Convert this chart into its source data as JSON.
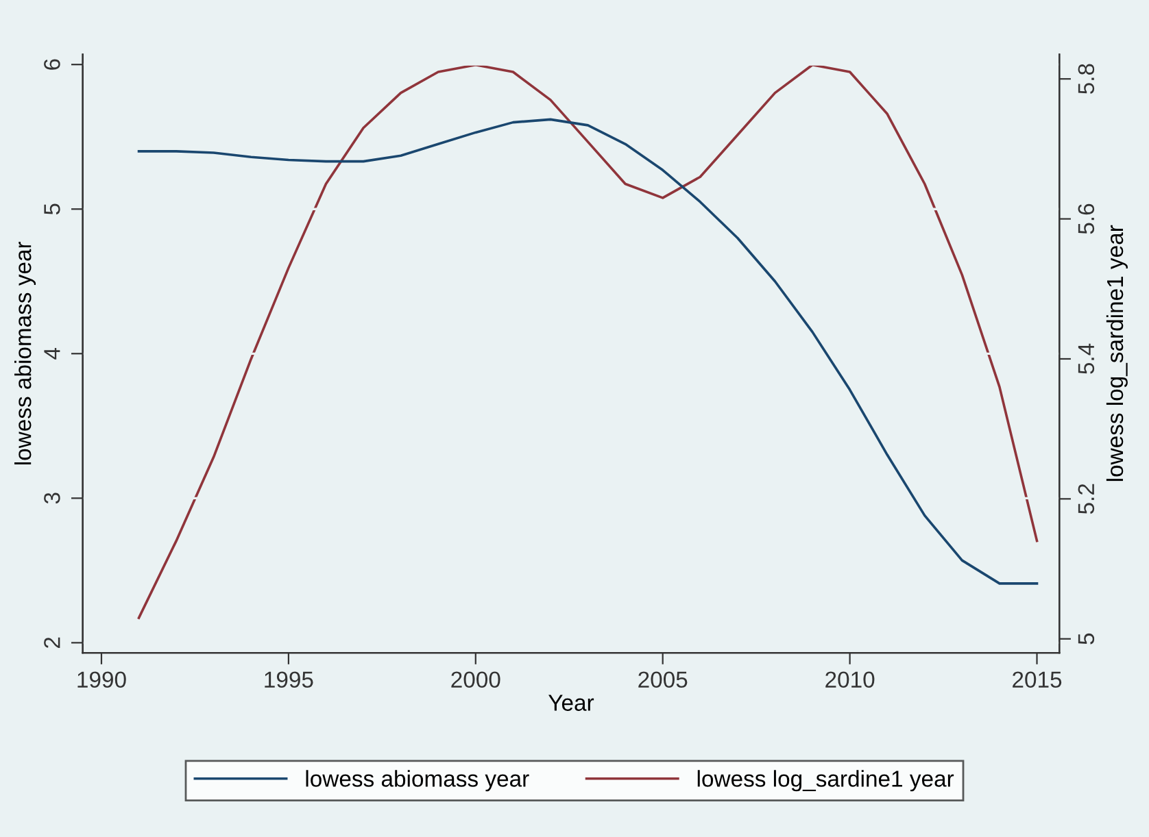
{
  "chart_data": {
    "type": "line",
    "xlabel": "Year",
    "ylabel": "lowess abiomass year",
    "y2label": "lowess log_sardine1 year",
    "x": [
      1991,
      1992,
      1993,
      1994,
      1995,
      1996,
      1997,
      1998,
      1999,
      2000,
      2001,
      2002,
      2003,
      2004,
      2005,
      2006,
      2007,
      2008,
      2009,
      2010,
      2011,
      2012,
      2013,
      2014,
      2015
    ],
    "series": [
      {
        "name": "lowess abiomass year",
        "color": "#1a476f",
        "values": [
          5.4,
          5.4,
          5.39,
          5.36,
          5.34,
          5.33,
          5.33,
          5.37,
          5.45,
          5.53,
          5.6,
          5.62,
          5.58,
          5.45,
          5.27,
          5.05,
          4.8,
          4.5,
          4.15,
          3.75,
          3.3,
          2.88,
          2.57,
          2.41,
          2.41
        ]
      },
      {
        "name": "lowess log_sardine1 year",
        "color": "#90353b",
        "axis": "y2",
        "values": [
          5.03,
          5.14,
          5.26,
          5.4,
          5.53,
          5.65,
          5.73,
          5.78,
          5.81,
          5.82,
          5.81,
          5.77,
          5.71,
          5.65,
          5.63,
          5.66,
          5.72,
          5.78,
          5.82,
          5.81,
          5.75,
          5.65,
          5.52,
          5.36,
          5.14
        ]
      }
    ],
    "xlim": [
      1989.5,
      2015.6
    ],
    "xticks": [
      1990,
      1995,
      2000,
      2005,
      2010,
      2015
    ],
    "ylim": [
      1.93,
      6.07
    ],
    "yticks": [
      2,
      3,
      4,
      5,
      6
    ],
    "y2lim": [
      4.98,
      5.835
    ],
    "y2ticks": [
      5,
      5.2,
      5.4,
      5.6,
      5.8
    ],
    "grid": "y",
    "legend": "bottom",
    "marker": "none",
    "line_style": "solid"
  }
}
